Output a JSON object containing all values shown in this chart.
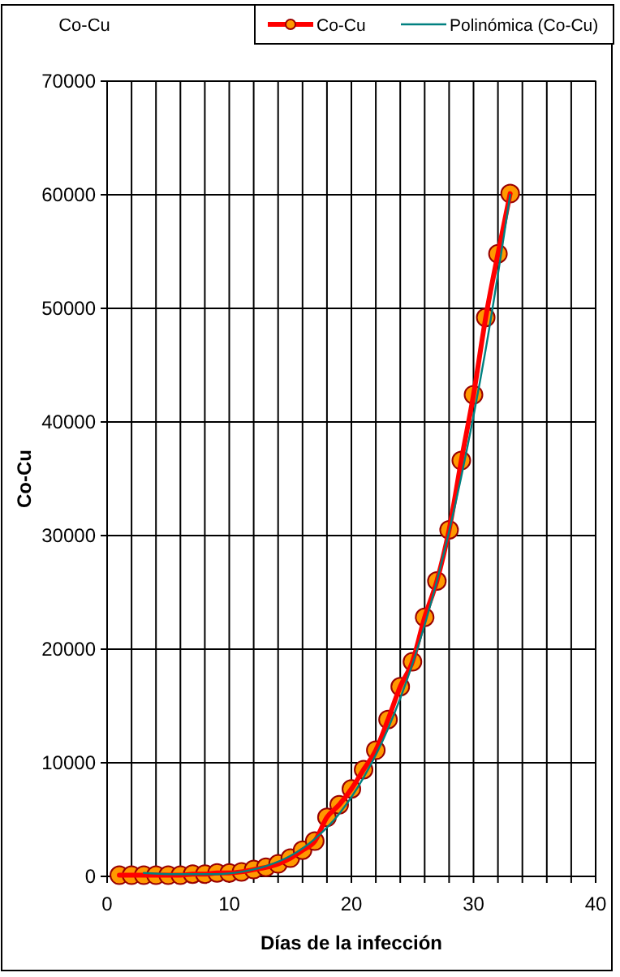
{
  "chart_data": {
    "type": "line",
    "title": "Co-Cu",
    "xlabel": "Días de la infección",
    "ylabel": "Co-Cu",
    "xlim": [
      0,
      40
    ],
    "ylim": [
      0,
      70000
    ],
    "xticks": [
      0,
      {
        "value": 2,
        "label": null
      },
      {
        "value": 4,
        "label": null
      },
      {
        "value": 6,
        "label": null
      },
      {
        "value": 8,
        "label": null
      },
      10,
      {
        "value": 12,
        "label": null
      },
      {
        "value": 14,
        "label": null
      },
      {
        "value": 16,
        "label": null
      },
      {
        "value": 18,
        "label": null
      },
      20,
      {
        "value": 22,
        "label": null
      },
      {
        "value": 24,
        "label": null
      },
      {
        "value": 26,
        "label": null
      },
      {
        "value": 28,
        "label": null
      },
      30,
      {
        "value": 32,
        "label": null
      },
      {
        "value": 34,
        "label": null
      },
      {
        "value": 36,
        "label": null
      },
      {
        "value": 38,
        "label": null
      },
      40
    ],
    "yticks": [
      0,
      10000,
      20000,
      30000,
      40000,
      50000,
      60000,
      70000
    ],
    "grid": true,
    "legend": "top right",
    "series": [
      {
        "name": "Co-Cu",
        "color": "#ff0000",
        "marker": "circle",
        "x": [
          1,
          2,
          3,
          4,
          5,
          6,
          7,
          8,
          9,
          10,
          11,
          12,
          13,
          14,
          15,
          16,
          17,
          18,
          19,
          20,
          21,
          22,
          23,
          24,
          25,
          26,
          27,
          28,
          29,
          30,
          31,
          32,
          33
        ],
        "values": [
          100,
          100,
          100,
          100,
          100,
          100,
          200,
          200,
          300,
          300,
          400,
          600,
          800,
          1100,
          1600,
          2300,
          3100,
          5200,
          6300,
          7700,
          9400,
          11100,
          13800,
          16700,
          18900,
          22800,
          26000,
          30500,
          36600,
          42400,
          49200,
          54800,
          60100
        ]
      },
      {
        "name": "Polinómica (Co-Cu)",
        "color": "#008080",
        "marker": "none",
        "x": [
          3,
          5,
          7,
          9,
          11,
          13,
          15,
          17,
          19,
          21,
          23,
          25,
          27,
          29,
          31,
          33
        ],
        "values": [
          300,
          200,
          200,
          200,
          400,
          900,
          1800,
          3300,
          5500,
          8700,
          13000,
          18700,
          26000,
          35200,
          46400,
          60000
        ]
      }
    ]
  }
}
